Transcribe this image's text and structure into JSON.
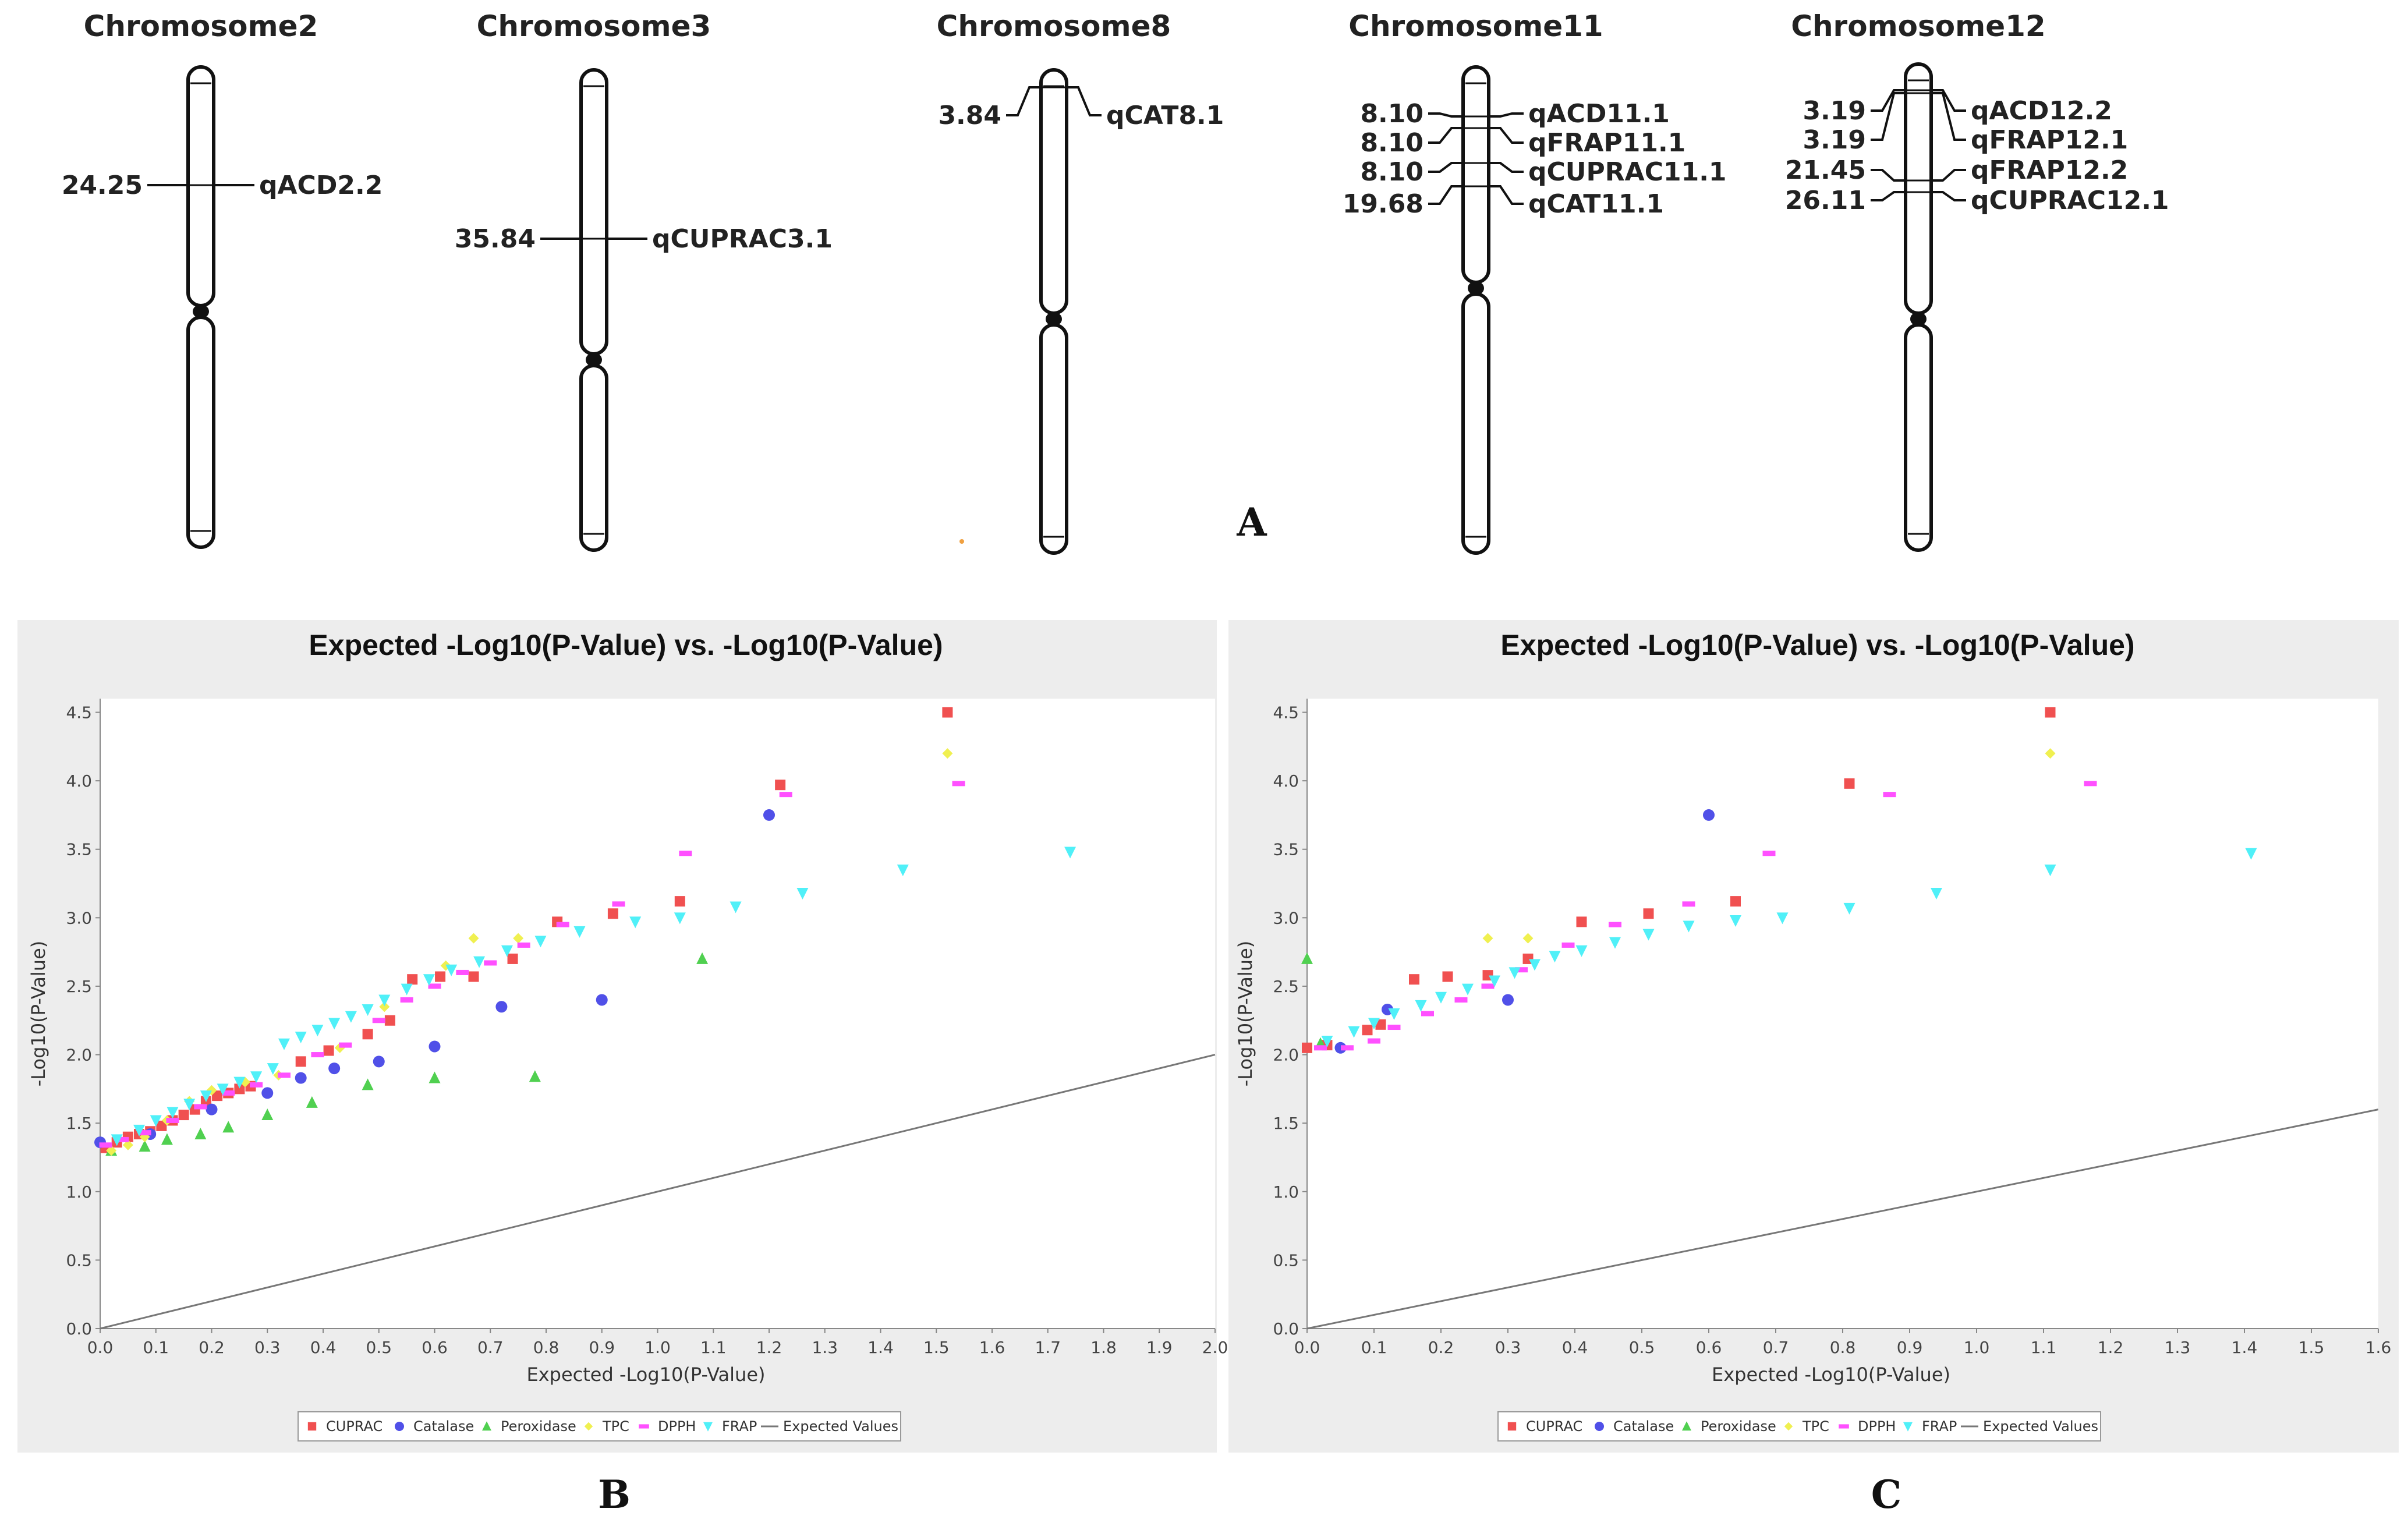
{
  "panel_a": {
    "letter": "A",
    "chromosomes": [
      {
        "name": "Chromosome2",
        "qtls": [
          {
            "pos": "24.25",
            "label": "qACD2.2"
          }
        ]
      },
      {
        "name": "Chromosome3",
        "qtls": [
          {
            "pos": "35.84",
            "label": "qCUPRAC3.1"
          }
        ]
      },
      {
        "name": "Chromosome8",
        "qtls": [
          {
            "pos": "3.84",
            "label": "qCAT8.1"
          }
        ]
      },
      {
        "name": "Chromosome11",
        "qtls": [
          {
            "pos": "8.10",
            "label": "qACD11.1"
          },
          {
            "pos": "8.10",
            "label": "qFRAP11.1"
          },
          {
            "pos": "8.10",
            "label": "qCUPRAC11.1"
          },
          {
            "pos": "19.68",
            "label": "qCAT11.1"
          }
        ]
      },
      {
        "name": "Chromosome12",
        "qtls": [
          {
            "pos": "3.19",
            "label": "qACD12.2"
          },
          {
            "pos": "3.19",
            "label": "qFRAP12.1"
          },
          {
            "pos": "21.45",
            "label": "qFRAP12.2"
          },
          {
            "pos": "26.11",
            "label": "qCUPRAC12.1"
          }
        ]
      }
    ]
  },
  "colors": {
    "CUPRAC": "#f05050",
    "Catalase": "#5050e8",
    "Peroxidase": "#50d050",
    "TPC": "#f0f050",
    "DPPH": "#ff50ff",
    "FRAP": "#50f0f8",
    "Expected Values": "#777777",
    "panel_bg": "#ededed"
  },
  "chart_data": [
    {
      "panel": "B",
      "type": "scatter",
      "title": "Expected -Log10(P-Value) vs. -Log10(P-Value)",
      "xlabel": "Expected -Log10(P-Value)",
      "ylabel": "-Log10(P-Value)",
      "xlim": [
        0,
        2.0
      ],
      "ylim": [
        0,
        4.6
      ],
      "xticks": [
        "0.0",
        "0.1",
        "0.2",
        "0.3",
        "0.4",
        "0.5",
        "0.6",
        "0.7",
        "0.8",
        "0.9",
        "1.0",
        "1.1",
        "1.2",
        "1.3",
        "1.4",
        "1.5",
        "1.6",
        "1.7",
        "1.8",
        "1.9",
        "2.0"
      ],
      "yticks": [
        "0.0",
        "0.5",
        "1.0",
        "1.5",
        "2.0",
        "2.5",
        "3.0",
        "3.5",
        "4.0",
        "4.5"
      ],
      "legend": [
        "CUPRAC",
        "Catalase",
        "Peroxidase",
        "TPC",
        "DPPH",
        "FRAP",
        "Expected Values"
      ],
      "expected_line": [
        [
          0,
          0
        ],
        [
          2.0,
          2.0
        ]
      ],
      "series": [
        {
          "name": "CUPRAC",
          "points": [
            [
              0.01,
              1.32
            ],
            [
              0.03,
              1.36
            ],
            [
              0.05,
              1.4
            ],
            [
              0.07,
              1.42
            ],
            [
              0.09,
              1.44
            ],
            [
              0.11,
              1.48
            ],
            [
              0.13,
              1.52
            ],
            [
              0.15,
              1.56
            ],
            [
              0.17,
              1.6
            ],
            [
              0.19,
              1.66
            ],
            [
              0.21,
              1.7
            ],
            [
              0.23,
              1.72
            ],
            [
              0.25,
              1.75
            ],
            [
              0.27,
              1.77
            ],
            [
              0.36,
              1.95
            ],
            [
              0.41,
              2.03
            ],
            [
              0.48,
              2.15
            ],
            [
              0.52,
              2.25
            ],
            [
              0.56,
              2.55
            ],
            [
              0.61,
              2.57
            ],
            [
              0.67,
              2.57
            ],
            [
              0.74,
              2.7
            ],
            [
              0.82,
              2.97
            ],
            [
              0.92,
              3.03
            ],
            [
              1.04,
              3.12
            ],
            [
              1.22,
              3.97
            ],
            [
              1.52,
              4.5
            ]
          ]
        },
        {
          "name": "Catalase",
          "points": [
            [
              0.0,
              1.36
            ],
            [
              0.09,
              1.42
            ],
            [
              0.2,
              1.6
            ],
            [
              0.3,
              1.72
            ],
            [
              0.36,
              1.83
            ],
            [
              0.42,
              1.9
            ],
            [
              0.5,
              1.95
            ],
            [
              0.6,
              2.06
            ],
            [
              0.72,
              2.35
            ],
            [
              0.9,
              2.4
            ],
            [
              1.2,
              3.75
            ]
          ]
        },
        {
          "name": "Peroxidase",
          "points": [
            [
              0.02,
              1.3
            ],
            [
              0.08,
              1.33
            ],
            [
              0.12,
              1.38
            ],
            [
              0.18,
              1.42
            ],
            [
              0.23,
              1.47
            ],
            [
              0.3,
              1.56
            ],
            [
              0.38,
              1.65
            ],
            [
              0.48,
              1.78
            ],
            [
              0.6,
              1.83
            ],
            [
              0.78,
              1.84
            ],
            [
              1.08,
              2.7
            ]
          ]
        },
        {
          "name": "TPC",
          "points": [
            [
              0.02,
              1.3
            ],
            [
              0.05,
              1.34
            ],
            [
              0.08,
              1.4
            ],
            [
              0.12,
              1.52
            ],
            [
              0.16,
              1.66
            ],
            [
              0.2,
              1.74
            ],
            [
              0.26,
              1.8
            ],
            [
              0.32,
              1.85
            ],
            [
              0.43,
              2.05
            ],
            [
              0.51,
              2.35
            ],
            [
              0.62,
              2.65
            ],
            [
              0.67,
              2.85
            ],
            [
              0.75,
              2.85
            ],
            [
              1.52,
              4.2
            ]
          ]
        },
        {
          "name": "DPPH",
          "points": [
            [
              0.01,
              1.34
            ],
            [
              0.04,
              1.38
            ],
            [
              0.08,
              1.43
            ],
            [
              0.13,
              1.52
            ],
            [
              0.18,
              1.62
            ],
            [
              0.23,
              1.72
            ],
            [
              0.28,
              1.78
            ],
            [
              0.33,
              1.85
            ],
            [
              0.39,
              2.0
            ],
            [
              0.44,
              2.07
            ],
            [
              0.5,
              2.25
            ],
            [
              0.55,
              2.4
            ],
            [
              0.6,
              2.5
            ],
            [
              0.65,
              2.6
            ],
            [
              0.7,
              2.67
            ],
            [
              0.76,
              2.8
            ],
            [
              0.83,
              2.95
            ],
            [
              0.93,
              3.1
            ],
            [
              1.05,
              3.47
            ],
            [
              1.23,
              3.9
            ],
            [
              1.54,
              3.98
            ]
          ]
        },
        {
          "name": "FRAP",
          "points": [
            [
              0.03,
              1.38
            ],
            [
              0.07,
              1.45
            ],
            [
              0.1,
              1.52
            ],
            [
              0.13,
              1.58
            ],
            [
              0.16,
              1.64
            ],
            [
              0.19,
              1.7
            ],
            [
              0.22,
              1.75
            ],
            [
              0.25,
              1.8
            ],
            [
              0.28,
              1.84
            ],
            [
              0.31,
              1.9
            ],
            [
              0.33,
              2.08
            ],
            [
              0.36,
              2.13
            ],
            [
              0.39,
              2.18
            ],
            [
              0.42,
              2.23
            ],
            [
              0.45,
              2.28
            ],
            [
              0.48,
              2.33
            ],
            [
              0.51,
              2.4
            ],
            [
              0.55,
              2.48
            ],
            [
              0.59,
              2.55
            ],
            [
              0.63,
              2.62
            ],
            [
              0.68,
              2.68
            ],
            [
              0.73,
              2.76
            ],
            [
              0.79,
              2.83
            ],
            [
              0.86,
              2.9
            ],
            [
              0.96,
              2.97
            ],
            [
              1.04,
              3.0
            ],
            [
              1.14,
              3.08
            ],
            [
              1.26,
              3.18
            ],
            [
              1.44,
              3.35
            ],
            [
              1.74,
              3.48
            ]
          ]
        }
      ]
    },
    {
      "panel": "C",
      "type": "scatter",
      "title": "Expected -Log10(P-Value) vs. -Log10(P-Value)",
      "xlabel": "Expected -Log10(P-Value)",
      "ylabel": "-Log10(P-Value)",
      "xlim": [
        0,
        1.6
      ],
      "ylim": [
        0,
        4.6
      ],
      "xticks": [
        "0.0",
        "0.1",
        "0.2",
        "0.3",
        "0.4",
        "0.5",
        "0.6",
        "0.7",
        "0.8",
        "0.9",
        "1.0",
        "1.1",
        "1.2",
        "1.3",
        "1.4",
        "1.5",
        "1.6"
      ],
      "yticks": [
        "0.0",
        "0.5",
        "1.0",
        "1.5",
        "2.0",
        "2.5",
        "3.0",
        "3.5",
        "4.0",
        "4.5"
      ],
      "legend": [
        "CUPRAC",
        "Catalase",
        "Peroxidase",
        "TPC",
        "DPPH",
        "FRAP",
        "Expected Values"
      ],
      "expected_line": [
        [
          0,
          0
        ],
        [
          1.6,
          1.6
        ]
      ],
      "series": [
        {
          "name": "CUPRAC",
          "points": [
            [
              0.0,
              2.05
            ],
            [
              0.03,
              2.07
            ],
            [
              0.09,
              2.18
            ],
            [
              0.11,
              2.22
            ],
            [
              0.16,
              2.55
            ],
            [
              0.21,
              2.57
            ],
            [
              0.27,
              2.58
            ],
            [
              0.33,
              2.7
            ],
            [
              0.41,
              2.97
            ],
            [
              0.51,
              3.03
            ],
            [
              0.64,
              3.12
            ],
            [
              0.81,
              3.98
            ],
            [
              1.11,
              4.5
            ]
          ]
        },
        {
          "name": "Catalase",
          "points": [
            [
              0.05,
              2.05
            ],
            [
              0.12,
              2.33
            ],
            [
              0.3,
              2.4
            ],
            [
              0.6,
              3.75
            ]
          ]
        },
        {
          "name": "Peroxidase",
          "points": [
            [
              0.0,
              2.7
            ],
            [
              0.02,
              2.08
            ]
          ]
        },
        {
          "name": "TPC",
          "points": [
            [
              0.27,
              2.85
            ],
            [
              0.33,
              2.85
            ],
            [
              1.11,
              4.2
            ]
          ]
        },
        {
          "name": "DPPH",
          "points": [
            [
              0.02,
              2.05
            ],
            [
              0.06,
              2.05
            ],
            [
              0.1,
              2.1
            ],
            [
              0.13,
              2.2
            ],
            [
              0.18,
              2.3
            ],
            [
              0.23,
              2.4
            ],
            [
              0.27,
              2.5
            ],
            [
              0.32,
              2.62
            ],
            [
              0.39,
              2.8
            ],
            [
              0.46,
              2.95
            ],
            [
              0.57,
              3.1
            ],
            [
              0.69,
              3.47
            ],
            [
              0.87,
              3.9
            ],
            [
              1.17,
              3.98
            ]
          ]
        },
        {
          "name": "FRAP",
          "points": [
            [
              0.03,
              2.1
            ],
            [
              0.07,
              2.17
            ],
            [
              0.1,
              2.23
            ],
            [
              0.13,
              2.3
            ],
            [
              0.17,
              2.36
            ],
            [
              0.2,
              2.42
            ],
            [
              0.24,
              2.48
            ],
            [
              0.28,
              2.54
            ],
            [
              0.31,
              2.6
            ],
            [
              0.34,
              2.66
            ],
            [
              0.37,
              2.72
            ],
            [
              0.41,
              2.76
            ],
            [
              0.46,
              2.82
            ],
            [
              0.51,
              2.88
            ],
            [
              0.57,
              2.94
            ],
            [
              0.64,
              2.98
            ],
            [
              0.71,
              3.0
            ],
            [
              0.81,
              3.07
            ],
            [
              0.94,
              3.18
            ],
            [
              1.11,
              3.35
            ],
            [
              1.41,
              3.47
            ]
          ]
        }
      ]
    }
  ]
}
